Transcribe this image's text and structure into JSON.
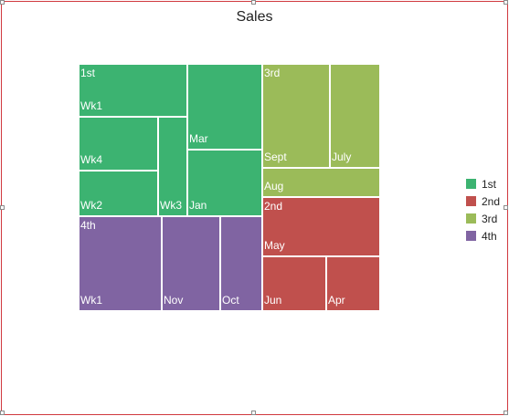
{
  "chart_data": {
    "type": "treemap",
    "title": "Sales",
    "legend_position": "right",
    "groups": [
      {
        "name": "1st",
        "color": "#3cb371",
        "items": [
          {
            "label": "Mar",
            "value": 4.5
          },
          {
            "label": "Wk1",
            "value": 4.0
          },
          {
            "label": "Wk4",
            "value": 3.0
          },
          {
            "label": "Jan",
            "value": 3.5
          },
          {
            "label": "Wk3",
            "value": 2.0
          },
          {
            "label": "Wk2",
            "value": 2.5
          }
        ]
      },
      {
        "name": "4th",
        "color": "#8064a2",
        "items": [
          {
            "label": "Wk1",
            "value": 5.0
          },
          {
            "label": "Nov",
            "value": 3.5
          },
          {
            "label": "Oct",
            "value": 2.5
          }
        ]
      },
      {
        "name": "3rd",
        "color": "#9bbb59",
        "items": [
          {
            "label": "Sept",
            "value": 4.0
          },
          {
            "label": "July",
            "value": 3.0
          },
          {
            "label": "Aug",
            "value": 2.0
          }
        ]
      },
      {
        "name": "2nd",
        "color": "#c0504d",
        "items": [
          {
            "label": "May",
            "value": 4.0
          },
          {
            "label": "Jun",
            "value": 2.0
          },
          {
            "label": "Apr",
            "value": 1.7
          }
        ]
      }
    ]
  }
}
